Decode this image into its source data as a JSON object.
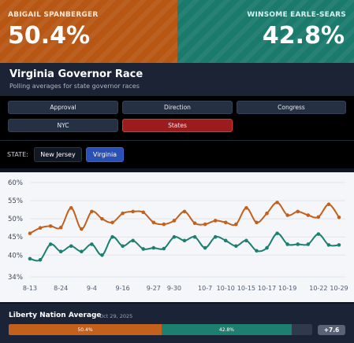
{
  "candidates": [
    {
      "name": "ABIGAIL SPANBERGER",
      "pct": "50.4%",
      "color": "#b85614"
    },
    {
      "name": "WINSOME EARLE-SEARS",
      "pct": "42.8%",
      "color": "#1a7a6c"
    }
  ],
  "header": {
    "title": "Virginia Governor Race",
    "subtitle": "Polling averages for state governor races"
  },
  "tabs": [
    {
      "label": "Approval",
      "active": false
    },
    {
      "label": "Direction",
      "active": false
    },
    {
      "label": "Congress",
      "active": false
    },
    {
      "label": "NYC",
      "active": false
    },
    {
      "label": "States",
      "active": true
    }
  ],
  "state_selector": {
    "label": "STATE:",
    "options": [
      "New Jersey",
      "Virginia"
    ],
    "selected": "Virginia"
  },
  "chart_data": {
    "type": "line",
    "x": [
      "8-13",
      "8-16",
      "8-19",
      "8-24",
      "8-28",
      "9-1",
      "9-4",
      "9-8",
      "9-12",
      "9-16",
      "9-20",
      "9-24",
      "9-27",
      "9-29",
      "9-30",
      "10-2",
      "10-5",
      "10-7",
      "10-8",
      "10-10",
      "10-12",
      "10-15",
      "10-16",
      "10-17",
      "10-18",
      "10-19",
      "10-20",
      "10-21",
      "10-22",
      "10-25",
      "10-29"
    ],
    "xticks": [
      "8-13",
      "8-24",
      "9-4",
      "9-16",
      "9-27",
      "9-30",
      "10-7",
      "10-10",
      "10-15",
      "10-17",
      "10-19",
      "10-22",
      "10-29"
    ],
    "ylim": [
      34,
      60
    ],
    "yticks": [
      "60%",
      "55%",
      "50%",
      "45%",
      "40%",
      "34%"
    ],
    "ytick_values": [
      60,
      55,
      50,
      45,
      40,
      34
    ],
    "series": [
      {
        "color": "#c2601c",
        "values": [
          46,
          47.5,
          48,
          47.6,
          53,
          47.2,
          52,
          50,
          49,
          51.5,
          52,
          51.8,
          49,
          48.5,
          49.5,
          52,
          48.8,
          48.5,
          49.5,
          49,
          48.5,
          53,
          49,
          51.5,
          54.5,
          51,
          52,
          51,
          50.5,
          54,
          50.4
        ]
      },
      {
        "color": "#1d7f70",
        "values": [
          39,
          38.7,
          43,
          41,
          42.5,
          41,
          43,
          40,
          45,
          42.5,
          44,
          41.7,
          42,
          41.8,
          45,
          44,
          45,
          42,
          45,
          44,
          42.5,
          44,
          41.2,
          42,
          46,
          43,
          43,
          43,
          45.8,
          42.8,
          42.8
        ]
      }
    ],
    "grid": true
  },
  "average": {
    "title": "Liberty Nation Average",
    "date": "Oct 29, 2025",
    "a_label": "50.4%",
    "a_value": 50.4,
    "b_label": "42.8%",
    "b_value": 42.8,
    "margin": "+7.6"
  }
}
